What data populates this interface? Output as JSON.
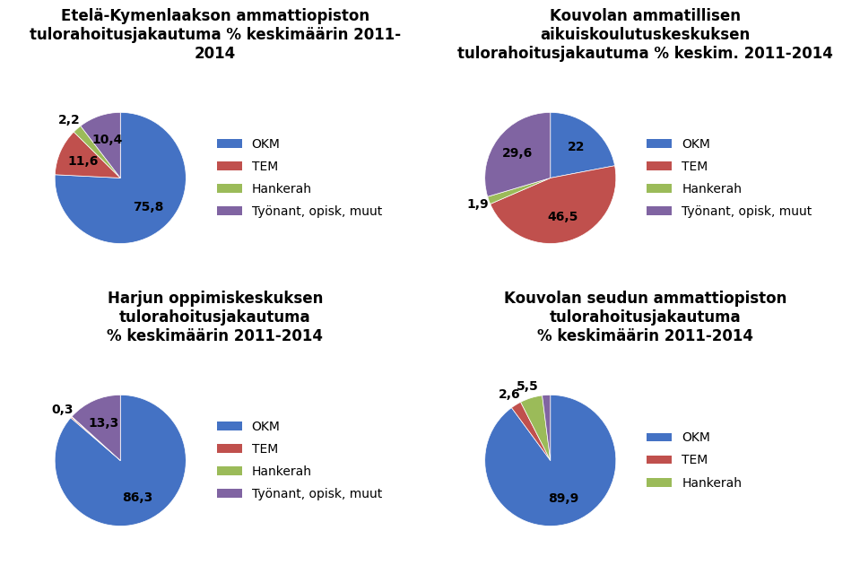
{
  "chart_data": [
    {
      "type": "pie",
      "title": "Etelä-Kymenlaakson ammattiopiston\ntulorahoitusjakautuma % keskimäärin 2011-\n2014",
      "categories": [
        "OKM",
        "TEM",
        "Hankerah",
        "Työnant, opisk, muut"
      ],
      "values": [
        75.8,
        11.6,
        2.2,
        10.4
      ],
      "value_labels": [
        "75,8",
        "11,6",
        "2,2",
        "10,4"
      ],
      "colors": [
        "#4472C4",
        "#C0504D",
        "#9BBB59",
        "#8064A2"
      ],
      "data_labels": true,
      "legend": "center left"
    },
    {
      "type": "pie",
      "title": "Kouvolan ammatillisen\naikuiskoulutuskeskuksen\ntulorahoitusjakautuma % keskim. 2011-2014",
      "categories": [
        "OKM",
        "TEM",
        "Hankerah",
        "Työnant, opisk, muut"
      ],
      "values": [
        22.0,
        46.5,
        1.9,
        29.6
      ],
      "value_labels": [
        "22",
        "46,5",
        "1,9",
        "29,6"
      ],
      "colors": [
        "#4472C4",
        "#C0504D",
        "#9BBB59",
        "#8064A2"
      ],
      "data_labels": true,
      "legend": "center left"
    },
    {
      "type": "pie",
      "title": "Harjun oppimiskeskuksen\ntulorahoitusjakautuma\n% keskimäärin 2011-2014",
      "categories": [
        "OKM",
        "TEM",
        "Hankerah",
        "Työnant, opisk, muut"
      ],
      "values": [
        86.3,
        0.3,
        0.1,
        13.3
      ],
      "value_labels": [
        "86,3",
        "0,3",
        null,
        "13,3"
      ],
      "colors": [
        "#4472C4",
        "#C0504D",
        "#9BBB59",
        "#8064A2"
      ],
      "data_labels": true,
      "legend": "center left"
    },
    {
      "type": "pie",
      "title": "Kouvolan seudun ammattiopiston\ntulorahoitusjakautuma\n% keskimäärin 2011-2014",
      "categories": [
        "OKM",
        "TEM",
        "Hankerah",
        null
      ],
      "values": [
        89.9,
        2.6,
        5.5,
        2.0
      ],
      "value_labels": [
        "89,9",
        "2,6",
        "5,5",
        null
      ],
      "colors": [
        "#4472C4",
        "#C0504D",
        "#9BBB59",
        "#8064A2"
      ],
      "data_labels": true,
      "legend": "center left"
    }
  ]
}
